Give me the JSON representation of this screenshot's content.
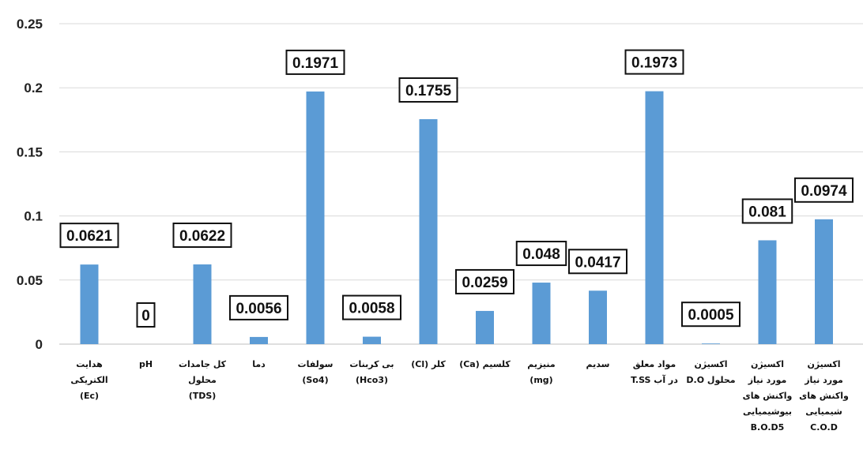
{
  "chart_data": {
    "type": "bar",
    "title": "",
    "xlabel": "",
    "ylabel": "",
    "ylim": [
      0,
      0.25
    ],
    "yticks": [
      "0",
      "0.05",
      "0.1",
      "0.15",
      "0.2",
      "0.25"
    ],
    "grid": true,
    "bar_color": "#5b9bd5",
    "categories": [
      "هدایت\nالکتریکی\n(Ec)",
      "pH",
      "کل جامدات\nمحلول\n(TDS)",
      "دما",
      "سولفات\n(So4)",
      "بی کربنات\n(Hco3)",
      "کلر (Cl)",
      "کلسیم (Ca)",
      "منیزیم\n(mg)",
      "سدیم",
      "مواد معلق\nدر آب T.SS",
      "اکسیژن\nمحلول D.O",
      "اکسیژن\nمورد نیاز\nواکنش های\nبیوشیمیایی\nB.O.D5",
      "اکسیژن\nمورد نیاز\nواکنش های\nشیمیایی\nC.O.D"
    ],
    "values": [
      0.0621,
      0,
      0.0622,
      0.0056,
      0.1971,
      0.0058,
      0.1755,
      0.0259,
      0.048,
      0.0417,
      0.1973,
      0.0005,
      0.081,
      0.0974
    ],
    "data_labels": [
      "0.0621",
      "0",
      "0.0622",
      "0.0056",
      "0.1971",
      "0.0058",
      "0.1755",
      "0.0259",
      "0.048",
      "0.0417",
      "0.1973",
      "0.0005",
      "0.081",
      "0.0974"
    ]
  }
}
